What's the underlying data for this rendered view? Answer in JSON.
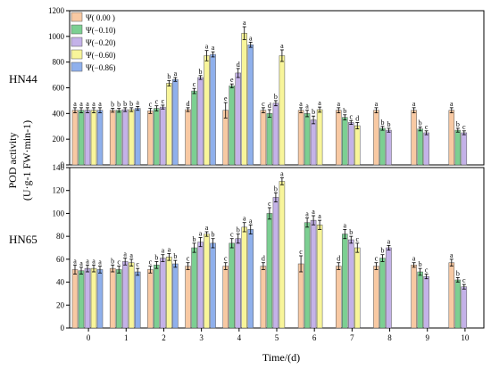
{
  "chart_data": {
    "type": "bar",
    "xlabel": "Time/(d)",
    "ylabel": "POD activity",
    "ylabel_units": "(U·g-1  FW·min-1)",
    "categories": [
      "0",
      "1",
      "2",
      "3",
      "4",
      "5",
      "6",
      "7",
      "8",
      "9",
      "10"
    ],
    "legend": {
      "placement": "top-left of top panel",
      "entries": [
        "Ψ( 0.00 )",
        "Ψ(−0.10)",
        "Ψ(−0.20)",
        "Ψ(−0.60)",
        "Ψ(−0.86)"
      ]
    },
    "colors": [
      "#F8C9A3",
      "#7CCF92",
      "#C4B2E8",
      "#F8F59A",
      "#8FB0EC"
    ],
    "panels": [
      {
        "label": "HN44",
        "ylim": [
          0,
          1200
        ],
        "yticks": [
          0,
          200,
          400,
          600,
          800,
          1000,
          1200
        ],
        "series": [
          {
            "name": "Ψ( 0.00 )",
            "values": [
              425,
              425,
              420,
              430,
              425,
              425,
              425,
              425,
              425,
              425,
              425
            ],
            "errors": [
              20,
              15,
              20,
              15,
              60,
              20,
              20,
              20,
              20,
              20,
              20
            ],
            "letters": [
              "a",
              "b",
              "c",
              "d",
              "e",
              "c",
              "a",
              "a",
              "a",
              "a",
              "a"
            ]
          },
          {
            "name": "Ψ(−0.10)",
            "values": [
              425,
              425,
              440,
              575,
              615,
              400,
              400,
              370,
              285,
              280,
              270
            ],
            "errors": [
              20,
              15,
              20,
              20,
              15,
              30,
              25,
              20,
              15,
              15,
              15
            ],
            "letters": [
              "a",
              "b",
              "c",
              "c",
              "e",
              "d",
              "a",
              "b",
              "b",
              "b",
              "b"
            ]
          },
          {
            "name": "Ψ(−0.20)",
            "values": [
              425,
              430,
              450,
              680,
              715,
              480,
              350,
              330,
              270,
              250,
              250
            ],
            "errors": [
              20,
              15,
              15,
              15,
              35,
              20,
              30,
              15,
              15,
              15,
              15
            ],
            "letters": [
              "a",
              "b",
              "c",
              "b",
              "d",
              "b",
              "b",
              "c",
              "b",
              "c",
              "c"
            ]
          },
          {
            "name": "Ψ(−0.60)",
            "values": [
              425,
              430,
              635,
              850,
              1025,
              850,
              430,
              305,
              null,
              null,
              null
            ],
            "errors": [
              20,
              15,
              20,
              40,
              50,
              45,
              20,
              25,
              null,
              null,
              null
            ],
            "letters": [
              "a",
              "b",
              "b",
              "a",
              "a",
              "a",
              "a",
              "d",
              "",
              "",
              ""
            ]
          },
          {
            "name": "Ψ(−0.86)",
            "values": [
              425,
              440,
              665,
              860,
              935,
              null,
              null,
              null,
              null,
              null,
              null
            ],
            "errors": [
              20,
              15,
              15,
              20,
              20,
              null,
              null,
              null,
              null,
              null,
              null
            ],
            "letters": [
              "a",
              "a",
              "a",
              "a",
              "a",
              "",
              "",
              "",
              "",
              "",
              ""
            ]
          }
        ]
      },
      {
        "label": "HN65",
        "ylim": [
          0,
          140
        ],
        "yticks": [
          0,
          20,
          40,
          60,
          80,
          100,
          120,
          140
        ],
        "series": [
          {
            "name": "Ψ( 0.00 )",
            "values": [
              51,
              52,
              51,
              54,
              54,
              54,
              56,
              54,
              54,
              55,
              57
            ],
            "errors": [
              4,
              3,
              3,
              3,
              3,
              3,
              7,
              3,
              3,
              2,
              3
            ],
            "letters": [
              "a",
              "b",
              "c",
              "c",
              "c",
              "d",
              "c",
              "d",
              "c",
              "a",
              "a"
            ]
          },
          {
            "name": "Ψ(−0.10)",
            "values": [
              50,
              51,
              55,
              70,
              74,
              100,
              92,
              82,
              61,
              49,
              42
            ],
            "errors": [
              3,
              3,
              3,
              4,
              4,
              5,
              4,
              4,
              3,
              3,
              2
            ],
            "letters": [
              "a",
              "c",
              "b",
              "b",
              "c",
              "c",
              "a",
              "a",
              "b",
              "b",
              "b"
            ]
          },
          {
            "name": "Ψ(−0.20)",
            "values": [
              52,
              58,
              61,
              75,
              78,
              114,
              94,
              77,
              70,
              45,
              36
            ],
            "errors": [
              3,
              3,
              3,
              4,
              4,
              4,
              4,
              3,
              2,
              2,
              2
            ],
            "letters": [
              "a",
              "a",
              "a",
              "a",
              "b",
              "b",
              "a",
              "b",
              "a",
              "c",
              "c"
            ]
          },
          {
            "name": "Ψ(−0.60)",
            "values": [
              52,
              57,
              62,
              82,
              88,
              128,
              90,
              70,
              null,
              null,
              null
            ],
            "errors": [
              3,
              3,
              3,
              2,
              4,
              3,
              4,
              4,
              null,
              null,
              null
            ],
            "letters": [
              "a",
              "a",
              "a",
              "a",
              "a",
              "a",
              "a",
              "c",
              "",
              "",
              ""
            ]
          },
          {
            "name": "Ψ(−0.86)",
            "values": [
              51,
              49,
              56,
              74,
              86,
              null,
              null,
              null,
              null,
              null,
              null
            ],
            "errors": [
              3,
              3,
              3,
              4,
              4,
              null,
              null,
              null,
              null,
              null,
              null
            ],
            "letters": [
              "a",
              "c",
              "b",
              "b",
              "a",
              "",
              "",
              "",
              "",
              "",
              ""
            ]
          }
        ]
      }
    ],
    "sig_label_color": "#000000",
    "sig_label_alt_color": "#C03040"
  }
}
